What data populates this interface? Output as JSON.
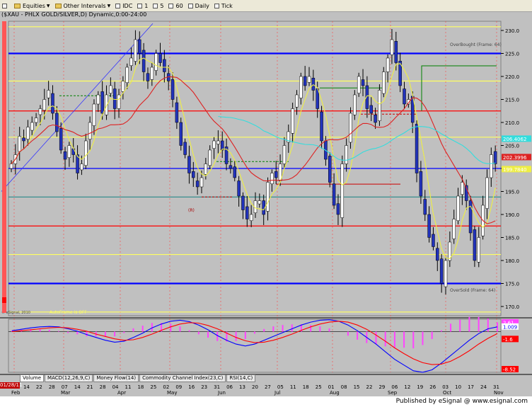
{
  "toolbar": {
    "items": [
      {
        "label": "",
        "icon": "chart-type-icon"
      },
      {
        "label": "Equities",
        "icon": "folder-icon",
        "dropdown": true
      },
      {
        "label": "Other Intervals",
        "icon": "folder-icon",
        "dropdown": true
      },
      {
        "label": "IDC",
        "icon": "time-icon"
      },
      {
        "label": "1",
        "icon": "box-icon"
      },
      {
        "label": "5",
        "icon": "box-icon"
      },
      {
        "label": "60",
        "icon": "box-icon"
      },
      {
        "label": "Daily",
        "icon": "box-icon"
      },
      {
        "label": "Tick",
        "icon": "box-icon"
      }
    ]
  },
  "title": "($XAU - PHLX GOLD/SILVER,D) Dynamic,0:00-24:00",
  "footer": {
    "published": "Published by eSignal @ www.esignal.com"
  },
  "current_date": "01/28/11",
  "tabs": [
    {
      "label": "Volume",
      "active": true
    },
    {
      "label": "MACD(12,26,9,C)",
      "active": false
    },
    {
      "label": "Money Flow(14)",
      "active": false
    },
    {
      "label": "Commodity Channel Index(23,C)",
      "active": false
    },
    {
      "label": "RSI(14,C)",
      "active": false
    }
  ],
  "colors": {
    "background": "#c0c0c0",
    "bull_candle": "#ffffff",
    "bear_candle": "#2233bb",
    "blue_level": "#0000ff",
    "yellow_level": "#ffff60",
    "red_level": "#ff0000",
    "cyan_ma": "#33dddd",
    "yellow_ma": "#eeee44",
    "red_ma": "#dd2222",
    "macd_line": "#0000ff",
    "macd_signal": "#ff0000",
    "macd_hist": "#ff44ff"
  },
  "chart_data": [
    {
      "type": "candlestick",
      "panel": "price",
      "ylim": [
        168,
        232
      ],
      "y_ticks": [
        170,
        175,
        180,
        185,
        190,
        195,
        200,
        205,
        210,
        215,
        220,
        225,
        230
      ],
      "x_month_labels": [
        "Feb",
        "Mar",
        "Apr",
        "May",
        "Jun",
        "Jul",
        "Aug",
        "Sep",
        "Oct",
        "Nov"
      ],
      "x_day_labels": [
        "07",
        "14",
        "22",
        "28",
        "07",
        "14",
        "21",
        "28",
        "04",
        "11",
        "18",
        "25",
        "02",
        "09",
        "16",
        "23",
        "31",
        "06",
        "13",
        "20",
        "27",
        "05",
        "11",
        "18",
        "25",
        "01",
        "08",
        "15",
        "22",
        "29",
        "06",
        "12",
        "19",
        "26",
        "03",
        "10",
        "17",
        "24",
        "31"
      ],
      "horizontal_levels": [
        {
          "value": 230.8,
          "color": "yellow",
          "style": "solid"
        },
        {
          "value": 225.0,
          "color": "blue",
          "style": "thick"
        },
        {
          "value": 219.0,
          "color": "yellow",
          "style": "solid"
        },
        {
          "value": 212.5,
          "color": "red",
          "style": "solid"
        },
        {
          "value": 206.8,
          "color": "yellow",
          "style": "solid"
        },
        {
          "value": 200.0,
          "color": "blue",
          "style": "solid"
        },
        {
          "value": 193.8,
          "color": "teal",
          "style": "solid"
        },
        {
          "value": 187.5,
          "color": "red",
          "style": "solid"
        },
        {
          "value": 181.3,
          "color": "yellow",
          "style": "solid"
        },
        {
          "value": 175.0,
          "color": "blue",
          "style": "thick"
        },
        {
          "value": 168.8,
          "color": "yellow",
          "style": "solid"
        }
      ],
      "annotations": [
        "OverBought (Frame: 64)",
        "OverSold (Frame: 64)",
        "(R)",
        "AutoFrame is OFF",
        "© eSignal, 2010"
      ],
      "price_labels": [
        {
          "value": 206.4062,
          "text": "206.4062",
          "bg": "#33dddd"
        },
        {
          "value": 202.3996,
          "text": "202.3996",
          "bg": "#dd2222"
        },
        {
          "value": 199.784,
          "text": "199.7840",
          "bg": "#eeee44"
        }
      ],
      "series": [
        {
          "name": "",
          "close": [
            201,
            203,
            207,
            206,
            209,
            210,
            211,
            213,
            215,
            217,
            212,
            208,
            204,
            202,
            205,
            203,
            199,
            201,
            206,
            210,
            214,
            216,
            212,
            216,
            218,
            213,
            216,
            219,
            222,
            224,
            228,
            225,
            221,
            219,
            222,
            225,
            223,
            221,
            219,
            215,
            210,
            205,
            203,
            199,
            198,
            196,
            198,
            201,
            204,
            206,
            206,
            204,
            201,
            200,
            198,
            194,
            191,
            189,
            190,
            193,
            193,
            190,
            197,
            199,
            198,
            201,
            205,
            208,
            213,
            216,
            220,
            218,
            220,
            217,
            213,
            206,
            202,
            197,
            192,
            190,
            201,
            205,
            212,
            216,
            220,
            218,
            213,
            212,
            210,
            217,
            221,
            224,
            228,
            223,
            218,
            214,
            215,
            210,
            199,
            194,
            190,
            185,
            183,
            180,
            175,
            180,
            184,
            189,
            194,
            197,
            193,
            186,
            180,
            185,
            192,
            198,
            203,
            201
          ]
        }
      ]
    },
    {
      "type": "line",
      "panel": "macd",
      "ylim": [
        -8.52,
        2.61
      ],
      "value_labels": [
        "2.61",
        "1.009",
        "-1.6",
        "-8.52"
      ],
      "series": [
        {
          "name": "",
          "values": [
            0.2,
            0.5,
            0.8,
            1.0,
            1.1,
            1.0,
            0.6,
            0.1,
            -0.6,
            -1.2,
            -1.8,
            -2.2,
            -2.0,
            -1.2,
            -0.3,
            0.8,
            1.6,
            2.2,
            2.4,
            2.1,
            1.4,
            0.4,
            -0.8,
            -1.8,
            -2.6,
            -3.0,
            -2.6,
            -1.8,
            -1.0,
            -0.2,
            0.6,
            1.4,
            2.0,
            2.4,
            2.5,
            2.2,
            1.4,
            0.2,
            -1.2,
            -2.6,
            -4.2,
            -5.8,
            -7.0,
            -8.2,
            -8.5,
            -8.0,
            -6.6,
            -5.0,
            -3.4,
            -1.8,
            -0.4,
            0.6,
            1.0
          ]
        },
        {
          "name": "",
          "values": [
            0.0,
            0.2,
            0.4,
            0.6,
            0.8,
            0.9,
            0.8,
            0.5,
            0.1,
            -0.5,
            -1.0,
            -1.5,
            -1.8,
            -1.7,
            -1.2,
            -0.5,
            0.3,
            1.0,
            1.6,
            1.9,
            1.8,
            1.3,
            0.6,
            -0.3,
            -1.2,
            -1.9,
            -2.3,
            -2.2,
            -1.8,
            -1.2,
            -0.5,
            0.3,
            1.0,
            1.6,
            2.0,
            2.2,
            2.0,
            1.4,
            0.5,
            -0.7,
            -2.0,
            -3.4,
            -4.6,
            -5.7,
            -6.5,
            -6.9,
            -6.8,
            -6.2,
            -5.2,
            -4.0,
            -2.6,
            -1.4,
            -0.4
          ]
        }
      ]
    }
  ]
}
